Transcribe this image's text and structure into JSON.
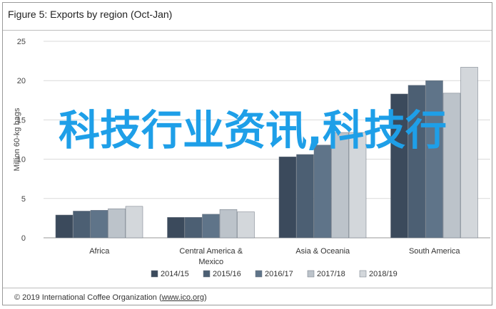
{
  "title": "Figure 5: Exports by region (Oct-Jan)",
  "footer": {
    "prefix": "© 2019 International Coffee Organization (",
    "link": "www.ico.org",
    "suffix": ")"
  },
  "watermark": "科技行业资讯,科技行",
  "chart_data": {
    "type": "bar",
    "categories": [
      "Africa",
      "Central America & Mexico",
      "Asia & Oceania",
      "South America"
    ],
    "category_lines": [
      [
        "Africa"
      ],
      [
        "Central America &",
        "Mexico"
      ],
      [
        "Asia & Oceania"
      ],
      [
        "South America"
      ]
    ],
    "series": [
      {
        "name": "2014/15",
        "values": [
          2.9,
          2.6,
          10.3,
          18.3
        ],
        "color": "#3b4a5c"
      },
      {
        "name": "2015/16",
        "values": [
          3.4,
          2.6,
          10.6,
          19.4
        ],
        "color": "#4c5f73"
      },
      {
        "name": "2016/17",
        "values": [
          3.5,
          3.0,
          11.8,
          20.0
        ],
        "color": "#5f7489"
      },
      {
        "name": "2017/18",
        "values": [
          3.7,
          3.6,
          13.4,
          18.4
        ],
        "color": "#bcc3ca"
      },
      {
        "name": "2018/19",
        "values": [
          4.0,
          3.3,
          13.4,
          21.7
        ],
        "color": "#d3d7db"
      }
    ],
    "xlabel": "",
    "ylabel": "Million 60-kg bags",
    "ylim": [
      0,
      25
    ],
    "yticks": [
      0,
      5,
      10,
      15,
      20,
      25
    ],
    "grid": true,
    "legend": "bottom"
  }
}
